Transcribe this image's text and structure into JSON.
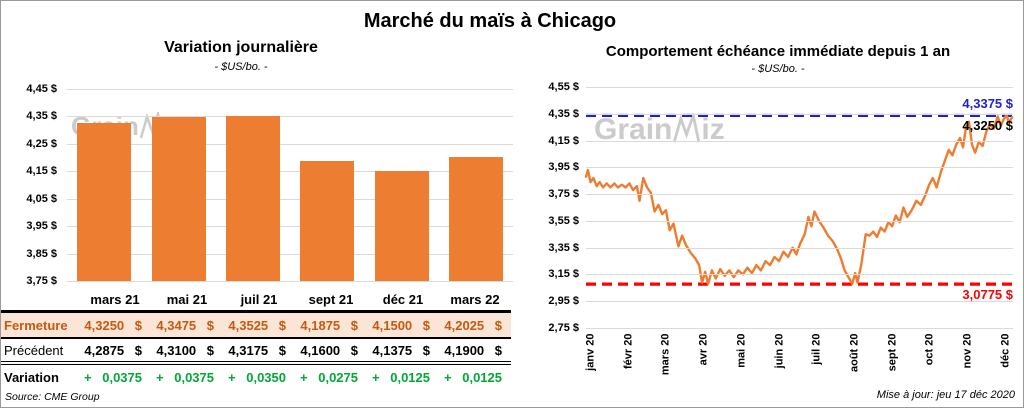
{
  "page": {
    "title": "Marché du maïs à Chicago",
    "source_note": "Source: CME Group",
    "update_note": "Mise à jour: jeu 17 déc 2020",
    "watermark_pre": "Grain",
    "watermark_post": "iz"
  },
  "colors": {
    "orange": "#ED7D31",
    "dark_orange": "#C55A11",
    "peach": "#FBE5D6",
    "green": "#00A933",
    "blue": "#2222CC",
    "red": "#FF0000",
    "grid": "#DADADA",
    "watermark": "#CBCBCB"
  },
  "chart_data": [
    {
      "type": "bar",
      "title": "Variation journalière",
      "subtitle": "- $US/bo. -",
      "categories": [
        "mars 21",
        "mai 21",
        "juil 21",
        "sept 21",
        "déc 21",
        "mars 22"
      ],
      "values": [
        4.325,
        4.3475,
        4.3525,
        4.1875,
        4.15,
        4.2025
      ],
      "ylim": [
        3.75,
        4.45
      ],
      "ytick_labels": [
        "4,45 $",
        "4,35 $",
        "4,25 $",
        "4,15 $",
        "4,05 $",
        "3,95 $",
        "3,85 $",
        "3,75 $"
      ],
      "bar_color": "#ED7D31",
      "grid": true
    },
    {
      "type": "line",
      "title": "Comportement échéance immédiate depuis 1 an",
      "subtitle": "- $US/bo. -",
      "x_labels": [
        "janv 20",
        "févr 20",
        "mars 20",
        "avr 20",
        "mai 20",
        "juin 20",
        "juil 20",
        "août 20",
        "sept 20",
        "oct 20",
        "nov 20",
        "déc 20"
      ],
      "ylim": [
        2.75,
        4.55
      ],
      "ytick_labels": [
        "4,55 $",
        "4,35 $",
        "4,15 $",
        "3,95 $",
        "3,75 $",
        "3,55 $",
        "3,35 $",
        "3,15 $",
        "2,95 $",
        "2,75 $"
      ],
      "grid": true,
      "series": [
        {
          "name": "échéance immédiate",
          "color": "#ED7D31",
          "points": [
            [
              0.0,
              3.88
            ],
            [
              0.05,
              3.93
            ],
            [
              0.12,
              3.84
            ],
            [
              0.2,
              3.87
            ],
            [
              0.28,
              3.81
            ],
            [
              0.36,
              3.84
            ],
            [
              0.45,
              3.8
            ],
            [
              0.55,
              3.83
            ],
            [
              0.65,
              3.8
            ],
            [
              0.75,
              3.83
            ],
            [
              0.85,
              3.8
            ],
            [
              0.95,
              3.82
            ],
            [
              1.05,
              3.8
            ],
            [
              1.15,
              3.83
            ],
            [
              1.25,
              3.78
            ],
            [
              1.35,
              3.81
            ],
            [
              1.42,
              3.7
            ],
            [
              1.52,
              3.87
            ],
            [
              1.62,
              3.8
            ],
            [
              1.72,
              3.76
            ],
            [
              1.82,
              3.62
            ],
            [
              1.92,
              3.67
            ],
            [
              2.02,
              3.6
            ],
            [
              2.12,
              3.63
            ],
            [
              2.22,
              3.48
            ],
            [
              2.32,
              3.53
            ],
            [
              2.45,
              3.36
            ],
            [
              2.55,
              3.44
            ],
            [
              2.65,
              3.37
            ],
            [
              2.78,
              3.31
            ],
            [
              2.9,
              3.27
            ],
            [
              3.0,
              3.22
            ],
            [
              3.08,
              3.09
            ],
            [
              3.16,
              3.17
            ],
            [
              3.24,
              3.08
            ],
            [
              3.34,
              3.18
            ],
            [
              3.44,
              3.12
            ],
            [
              3.56,
              3.19
            ],
            [
              3.68,
              3.14
            ],
            [
              3.8,
              3.18
            ],
            [
              3.92,
              3.13
            ],
            [
              4.04,
              3.18
            ],
            [
              4.16,
              3.15
            ],
            [
              4.28,
              3.2
            ],
            [
              4.4,
              3.16
            ],
            [
              4.52,
              3.22
            ],
            [
              4.64,
              3.18
            ],
            [
              4.76,
              3.25
            ],
            [
              4.88,
              3.22
            ],
            [
              5.0,
              3.28
            ],
            [
              5.12,
              3.25
            ],
            [
              5.24,
              3.32
            ],
            [
              5.36,
              3.28
            ],
            [
              5.48,
              3.35
            ],
            [
              5.58,
              3.3
            ],
            [
              5.68,
              3.38
            ],
            [
              5.8,
              3.45
            ],
            [
              5.9,
              3.58
            ],
            [
              5.98,
              3.51
            ],
            [
              6.06,
              3.62
            ],
            [
              6.18,
              3.55
            ],
            [
              6.3,
              3.5
            ],
            [
              6.42,
              3.44
            ],
            [
              6.54,
              3.4
            ],
            [
              6.66,
              3.34
            ],
            [
              6.76,
              3.27
            ],
            [
              6.86,
              3.18
            ],
            [
              6.96,
              3.13
            ],
            [
              7.06,
              3.08
            ],
            [
              7.14,
              3.16
            ],
            [
              7.2,
              3.09
            ],
            [
              7.3,
              3.22
            ],
            [
              7.42,
              3.45
            ],
            [
              7.52,
              3.44
            ],
            [
              7.62,
              3.47
            ],
            [
              7.72,
              3.43
            ],
            [
              7.82,
              3.5
            ],
            [
              7.92,
              3.47
            ],
            [
              8.02,
              3.54
            ],
            [
              8.12,
              3.51
            ],
            [
              8.22,
              3.59
            ],
            [
              8.32,
              3.54
            ],
            [
              8.42,
              3.65
            ],
            [
              8.52,
              3.58
            ],
            [
              8.64,
              3.63
            ],
            [
              8.76,
              3.7
            ],
            [
              8.88,
              3.67
            ],
            [
              9.0,
              3.74
            ],
            [
              9.1,
              3.82
            ],
            [
              9.2,
              3.87
            ],
            [
              9.3,
              3.8
            ],
            [
              9.42,
              3.92
            ],
            [
              9.52,
              4.0
            ],
            [
              9.62,
              4.08
            ],
            [
              9.72,
              4.04
            ],
            [
              9.82,
              4.12
            ],
            [
              9.92,
              4.17
            ],
            [
              10.0,
              4.1
            ],
            [
              10.08,
              4.25
            ],
            [
              10.16,
              4.29
            ],
            [
              10.24,
              4.12
            ],
            [
              10.32,
              4.06
            ],
            [
              10.42,
              4.14
            ],
            [
              10.52,
              4.11
            ],
            [
              10.62,
              4.22
            ],
            [
              10.72,
              4.27
            ],
            [
              10.82,
              4.24
            ],
            [
              10.92,
              4.33
            ],
            [
              11.0,
              4.26
            ],
            [
              11.08,
              4.31
            ],
            [
              11.16,
              4.34
            ],
            [
              11.22,
              4.28
            ],
            [
              11.3,
              4.325
            ]
          ]
        }
      ],
      "ref_lines": [
        {
          "value": 4.3375,
          "label": "4,3375 $",
          "color": "#2222CC",
          "style": "dashed"
        },
        {
          "value": 3.0775,
          "label": "3,0775 $",
          "color": "#FF0000",
          "style": "dashed"
        }
      ],
      "last_label": {
        "value": 4.325,
        "label": "4,3250 $",
        "color": "#000000"
      }
    }
  ],
  "table": {
    "corner_label": "",
    "columns": [
      "mars 21",
      "mai 21",
      "juil 21",
      "sept 21",
      "déc 21",
      "mars 22"
    ],
    "rows": [
      {
        "key": "fermeture",
        "label": "Fermeture",
        "values": [
          "4,3250 $",
          "4,3475 $",
          "4,3525 $",
          "4,1875 $",
          "4,1500 $",
          "4,2025 $"
        ]
      },
      {
        "key": "precedent",
        "label": "Précédent",
        "values": [
          "4,2875 $",
          "4,3100 $",
          "4,3175 $",
          "4,1600 $",
          "4,1375 $",
          "4,1900 $"
        ]
      },
      {
        "key": "variation",
        "label": "Variation",
        "values": [
          "+ 0,0375",
          "+ 0,0375",
          "+ 0,0350",
          "+ 0,0275",
          "+ 0,0125",
          "+ 0,0125"
        ]
      }
    ]
  }
}
